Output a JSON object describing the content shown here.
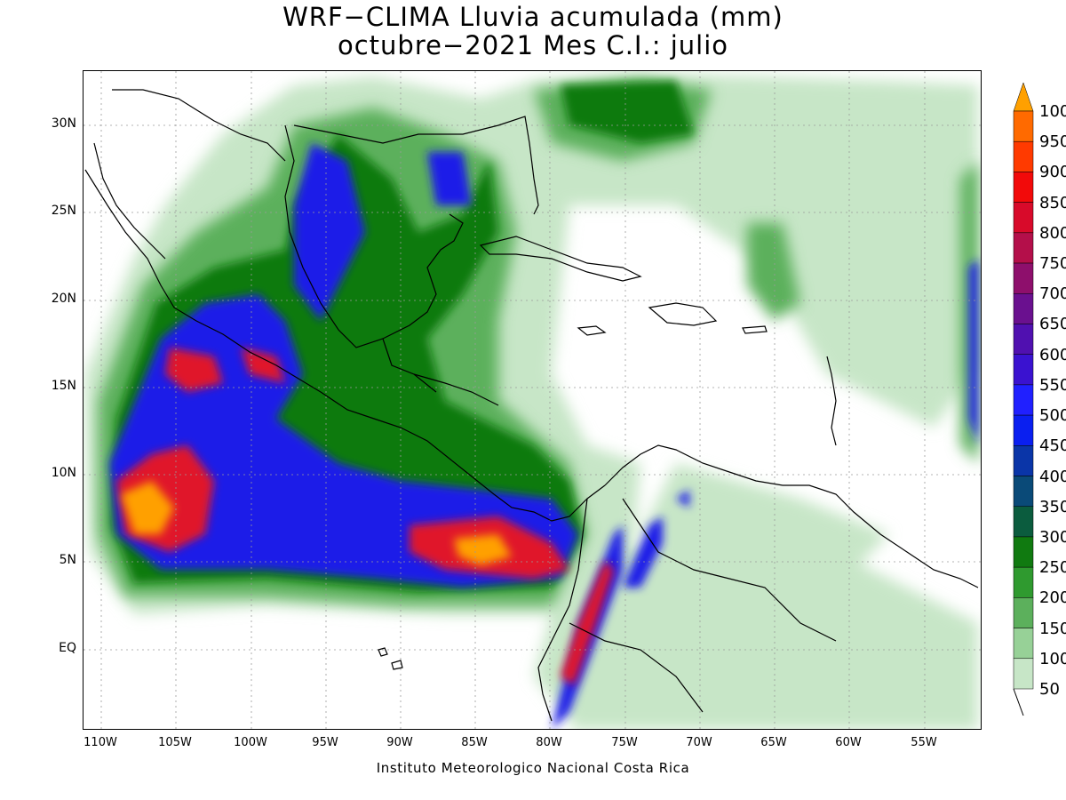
{
  "title": {
    "line1": "WRF−CLIMA Lluvia acumulada (mm)",
    "line2": "octubre−2021 Mes C.I.: julio"
  },
  "credit": "Instituto Meteorologico Nacional Costa Rica",
  "lat_labels": [
    "30N",
    "25N",
    "20N",
    "15N",
    "10N",
    "5N",
    "EQ"
  ],
  "lon_labels": [
    "110W",
    "105W",
    "100W",
    "95W",
    "90W",
    "85W",
    "80W",
    "75W",
    "70W",
    "65W",
    "60W",
    "55W"
  ],
  "colorbar": {
    "labels": [
      "50",
      "100",
      "150",
      "200",
      "250",
      "300",
      "350",
      "400",
      "450",
      "500",
      "550",
      "600",
      "650",
      "700",
      "750",
      "800",
      "850",
      "900",
      "950",
      "1000"
    ],
    "colors": [
      "#c7e6c7",
      "#97d197",
      "#5cb05c",
      "#2f9a2f",
      "#107a10",
      "#0b5c3e",
      "#0a4a78",
      "#0a35a8",
      "#0a1ff0",
      "#2020ff",
      "#3a12d0",
      "#5010b0",
      "#6a108f",
      "#8e0f6c",
      "#b40f4a",
      "#d80a2a",
      "#f20a0a",
      "#ff3a00",
      "#ff6a00",
      "#ffa000"
    ]
  }
}
